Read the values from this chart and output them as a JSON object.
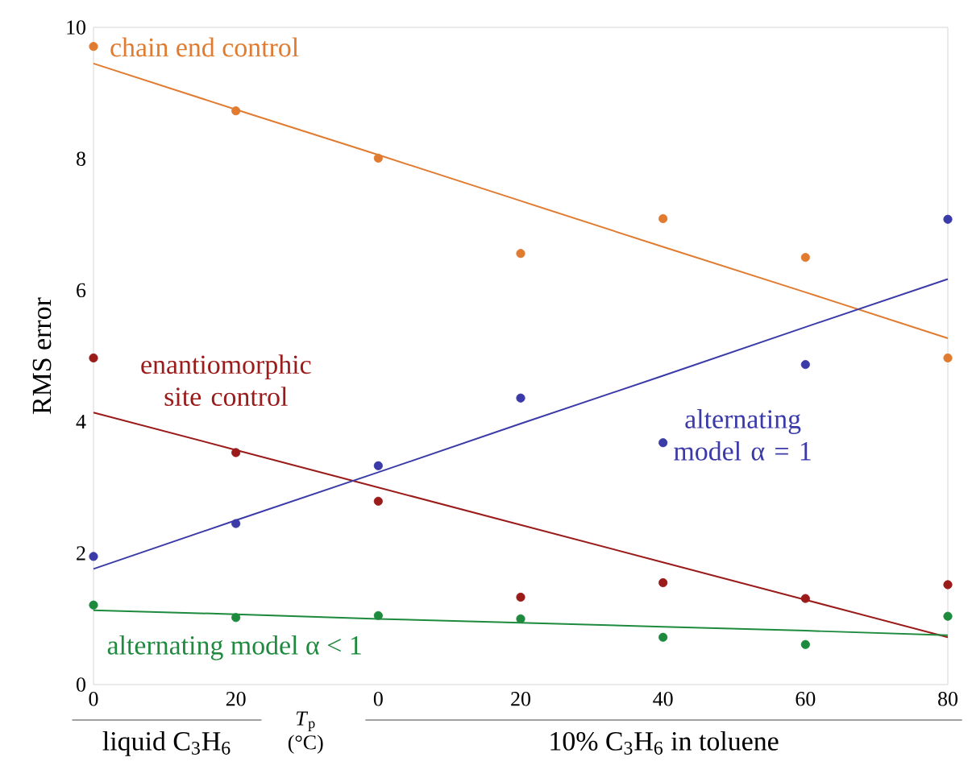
{
  "chart_data": {
    "type": "scatter",
    "ylabel": "RMS error",
    "xlabel": "*T*$_{p}$ (°C)",
    "annotations": [
      "liquid C$_{3}$H$_{6}$",
      "10% C$_{3}$H$_{6}$ in toluene"
    ],
    "ylim": [
      0,
      10
    ],
    "yticks": [
      0,
      2,
      4,
      6,
      8,
      10
    ],
    "categories": [
      "0",
      "20",
      "0",
      "20",
      "40",
      "60",
      "80"
    ],
    "grid": false,
    "series": [
      {
        "name": "chain end control",
        "marker": "circle",
        "color": "#e07b30",
        "values": [
          9.71,
          8.73,
          8.01,
          6.56,
          7.09,
          6.5,
          4.97
        ]
      },
      {
        "name": "enantiomorphic site control",
        "marker": "circle",
        "color": "#9b1b1b",
        "values": [
          4.97,
          3.53,
          2.79,
          1.33,
          1.55,
          1.31,
          1.52
        ]
      },
      {
        "name": "alternating model α = 1",
        "marker": "circle",
        "color": "#3a3aa8",
        "values": [
          1.95,
          2.45,
          3.33,
          4.36,
          3.68,
          4.87,
          7.08
        ]
      },
      {
        "name": "alternating model α < 1",
        "marker": "circle",
        "color": "#1e8a3e",
        "values": [
          1.21,
          1.02,
          1.05,
          1.0,
          0.72,
          0.61,
          1.04
        ]
      },
      {
        "type": "line",
        "marker": "none",
        "color": "#e07b30",
        "values": [
          9.45,
          8.75,
          8.06,
          7.36,
          6.66,
          5.97,
          5.27
        ]
      },
      {
        "type": "line",
        "marker": "none",
        "color": "#9b1b1b",
        "values": [
          4.14,
          3.57,
          3.0,
          2.43,
          1.86,
          1.29,
          0.72
        ]
      },
      {
        "type": "line",
        "marker": "none",
        "color": "#3a3aa8",
        "values": [
          1.76,
          2.5,
          3.23,
          3.97,
          4.7,
          5.44,
          6.17
        ]
      },
      {
        "type": "line",
        "marker": "none",
        "color": "#1e8a3e",
        "values": [
          1.13,
          1.07,
          1.0,
          0.94,
          0.88,
          0.82,
          0.75
        ]
      }
    ]
  }
}
